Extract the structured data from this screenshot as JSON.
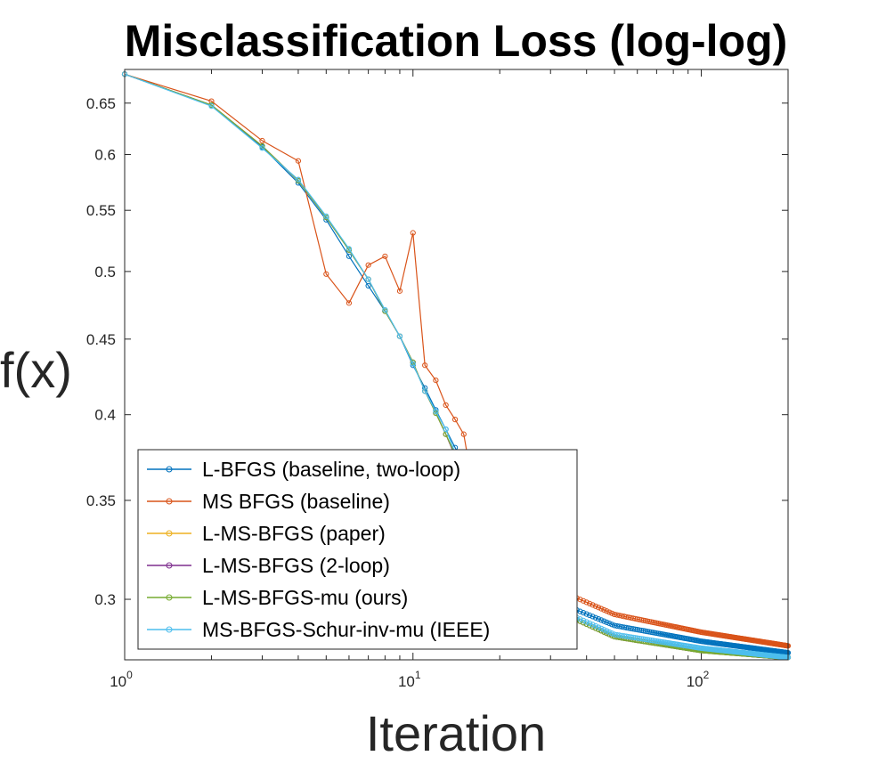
{
  "chart_data": {
    "type": "line",
    "title": "Misclassification Loss (log-log)",
    "xlabel": "Iteration",
    "ylabel": "f(x)",
    "xscale": "log",
    "yscale": "log",
    "xlim": [
      1,
      200
    ],
    "ylim": [
      0.273,
      0.685
    ],
    "xticks": [
      {
        "value": 1,
        "base": "10",
        "exp": "0"
      },
      {
        "value": 10,
        "base": "10",
        "exp": "1"
      },
      {
        "value": 100,
        "base": "10",
        "exp": "2"
      }
    ],
    "yticks": [
      {
        "value": 0.3,
        "label": "0.3"
      },
      {
        "value": 0.35,
        "label": "0.35"
      },
      {
        "value": 0.4,
        "label": "0.4"
      },
      {
        "value": 0.45,
        "label": "0.45"
      },
      {
        "value": 0.5,
        "label": "0.5"
      },
      {
        "value": 0.55,
        "label": "0.55"
      },
      {
        "value": 0.6,
        "label": "0.6"
      },
      {
        "value": 0.65,
        "label": "0.65"
      }
    ],
    "grid": false,
    "legend_position": "bottom-left",
    "series": [
      {
        "name": "L-BFGS (baseline, two-loop)",
        "color": "#0072BD",
        "x": [
          1,
          2,
          3,
          4,
          5,
          6,
          7,
          8,
          9,
          10,
          11,
          12,
          13,
          14,
          15,
          16,
          20,
          30,
          50,
          100,
          200
        ],
        "y": [
          0.68,
          0.648,
          0.607,
          0.574,
          0.542,
          0.512,
          0.489,
          0.47,
          0.452,
          0.432,
          0.417,
          0.403,
          0.391,
          0.38,
          0.37,
          0.361,
          0.334,
          0.3,
          0.288,
          0.281,
          0.276
        ]
      },
      {
        "name": "MS BFGS (baseline)",
        "color": "#D95319",
        "x": [
          1,
          2,
          3,
          4,
          5,
          6,
          7,
          8,
          9,
          10,
          11,
          12,
          13,
          14,
          15,
          16,
          20,
          30,
          50,
          100,
          200
        ],
        "y": [
          0.68,
          0.652,
          0.613,
          0.594,
          0.498,
          0.476,
          0.505,
          0.512,
          0.485,
          0.531,
          0.432,
          0.422,
          0.406,
          0.397,
          0.388,
          0.361,
          0.338,
          0.306,
          0.293,
          0.285,
          0.279
        ]
      },
      {
        "name": "L-MS-BFGS (paper)",
        "color": "#EDB120",
        "x": [
          1,
          2,
          3,
          4,
          5,
          6,
          7,
          8,
          9,
          10,
          11,
          12,
          13,
          14,
          15,
          16,
          20,
          30,
          50,
          100,
          200
        ],
        "y": [
          0.68,
          0.648,
          0.608,
          0.576,
          0.544,
          0.517,
          0.494,
          0.47,
          0.452,
          0.434,
          0.415,
          0.401,
          0.388,
          0.375,
          0.365,
          0.356,
          0.33,
          0.296,
          0.283,
          0.277,
          0.274
        ]
      },
      {
        "name": "L-MS-BFGS (2-loop)",
        "color": "#7E2F8E",
        "x": [
          1,
          2,
          3,
          4,
          5,
          6,
          7,
          8,
          9,
          10,
          11,
          12,
          13,
          14,
          15,
          16,
          20,
          30,
          50,
          100,
          200
        ],
        "y": [
          0.68,
          0.648,
          0.608,
          0.576,
          0.544,
          0.517,
          0.494,
          0.47,
          0.452,
          0.434,
          0.415,
          0.401,
          0.388,
          0.375,
          0.365,
          0.356,
          0.33,
          0.296,
          0.283,
          0.277,
          0.274
        ]
      },
      {
        "name": "L-MS-BFGS-mu (ours)",
        "color": "#77AC30",
        "x": [
          1,
          2,
          3,
          4,
          5,
          6,
          7,
          8,
          9,
          10,
          11,
          12,
          13,
          14,
          15,
          16,
          20,
          30,
          50,
          100,
          200
        ],
        "y": [
          0.68,
          0.648,
          0.608,
          0.576,
          0.544,
          0.517,
          0.494,
          0.47,
          0.452,
          0.434,
          0.415,
          0.401,
          0.388,
          0.376,
          0.366,
          0.357,
          0.331,
          0.296,
          0.283,
          0.277,
          0.274
        ]
      },
      {
        "name": "MS-BFGS-Schur-inv-mu (IEEE)",
        "color": "#4DBEEE",
        "x": [
          1,
          2,
          3,
          4,
          5,
          6,
          7,
          8,
          9,
          10,
          11,
          12,
          13,
          14,
          15,
          16,
          20,
          30,
          50,
          100,
          200
        ],
        "y": [
          0.68,
          0.647,
          0.606,
          0.577,
          0.545,
          0.518,
          0.494,
          0.471,
          0.452,
          0.433,
          0.415,
          0.402,
          0.391,
          0.377,
          0.367,
          0.357,
          0.331,
          0.297,
          0.284,
          0.278,
          0.274
        ]
      }
    ]
  }
}
